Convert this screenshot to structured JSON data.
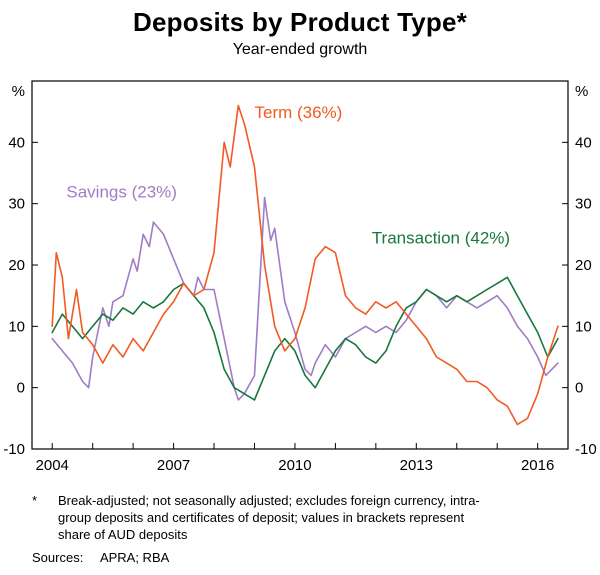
{
  "chart": {
    "title": "Deposits by Product Type*",
    "subtitle": "Year-ended growth"
  },
  "chart_data": {
    "type": "line",
    "title": "Deposits by Product Type*",
    "subtitle": "Year-ended growth",
    "y_unit": "%",
    "xlim": [
      2003.5,
      2016.75
    ],
    "ylim": [
      -10,
      50
    ],
    "yticks": [
      -10,
      0,
      10,
      20,
      30,
      40
    ],
    "xticks": [
      2004,
      2005,
      2006,
      2007,
      2008,
      2009,
      2010,
      2011,
      2012,
      2013,
      2014,
      2015,
      2016
    ],
    "xlabels": [
      "2004",
      "2007",
      "2010",
      "2013",
      "2016"
    ],
    "grid": false,
    "legend_position": "labels-on-chart",
    "series": [
      {
        "id": "savings",
        "name": "Savings (23%)",
        "color": "#a07cc5",
        "points": [
          [
            2004.0,
            8
          ],
          [
            2004.25,
            6
          ],
          [
            2004.5,
            4
          ],
          [
            2004.75,
            1
          ],
          [
            2004.9,
            0
          ],
          [
            2005.0,
            5
          ],
          [
            2005.25,
            13
          ],
          [
            2005.4,
            10
          ],
          [
            2005.5,
            14
          ],
          [
            2005.75,
            15
          ],
          [
            2006.0,
            21
          ],
          [
            2006.1,
            19
          ],
          [
            2006.25,
            25
          ],
          [
            2006.4,
            23
          ],
          [
            2006.5,
            27
          ],
          [
            2006.75,
            25
          ],
          [
            2007.0,
            21
          ],
          [
            2007.25,
            17
          ],
          [
            2007.5,
            15
          ],
          [
            2007.6,
            18
          ],
          [
            2007.75,
            16
          ],
          [
            2008.0,
            16
          ],
          [
            2008.25,
            8
          ],
          [
            2008.5,
            0
          ],
          [
            2008.6,
            -2
          ],
          [
            2008.75,
            -1
          ],
          [
            2009.0,
            2
          ],
          [
            2009.25,
            31
          ],
          [
            2009.4,
            24
          ],
          [
            2009.5,
            26
          ],
          [
            2009.75,
            14
          ],
          [
            2010.0,
            9
          ],
          [
            2010.25,
            3
          ],
          [
            2010.4,
            2
          ],
          [
            2010.5,
            4
          ],
          [
            2010.75,
            7
          ],
          [
            2011.0,
            5
          ],
          [
            2011.25,
            8
          ],
          [
            2011.5,
            9
          ],
          [
            2011.75,
            10
          ],
          [
            2012.0,
            9
          ],
          [
            2012.25,
            10
          ],
          [
            2012.5,
            9
          ],
          [
            2012.75,
            11
          ],
          [
            2013.0,
            14
          ],
          [
            2013.25,
            16
          ],
          [
            2013.5,
            15
          ],
          [
            2013.75,
            13
          ],
          [
            2014.0,
            15
          ],
          [
            2014.25,
            14
          ],
          [
            2014.5,
            13
          ],
          [
            2014.75,
            14
          ],
          [
            2015.0,
            15
          ],
          [
            2015.25,
            13
          ],
          [
            2015.5,
            10
          ],
          [
            2015.75,
            8
          ],
          [
            2016.0,
            5
          ],
          [
            2016.2,
            2
          ],
          [
            2016.35,
            3
          ],
          [
            2016.5,
            4
          ]
        ]
      },
      {
        "id": "transaction",
        "name": "Transaction (42%)",
        "color": "#17783b",
        "points": [
          [
            2004.0,
            9
          ],
          [
            2004.25,
            12
          ],
          [
            2004.5,
            10
          ],
          [
            2004.75,
            8
          ],
          [
            2005.0,
            10
          ],
          [
            2005.25,
            12
          ],
          [
            2005.5,
            11
          ],
          [
            2005.75,
            13
          ],
          [
            2006.0,
            12
          ],
          [
            2006.25,
            14
          ],
          [
            2006.5,
            13
          ],
          [
            2006.75,
            14
          ],
          [
            2007.0,
            16
          ],
          [
            2007.25,
            17
          ],
          [
            2007.5,
            15
          ],
          [
            2007.75,
            13
          ],
          [
            2008.0,
            9
          ],
          [
            2008.25,
            3
          ],
          [
            2008.5,
            0
          ],
          [
            2008.75,
            -1
          ],
          [
            2009.0,
            -2
          ],
          [
            2009.25,
            2
          ],
          [
            2009.5,
            6
          ],
          [
            2009.75,
            8
          ],
          [
            2010.0,
            6
          ],
          [
            2010.25,
            2
          ],
          [
            2010.5,
            0
          ],
          [
            2010.75,
            3
          ],
          [
            2011.0,
            6
          ],
          [
            2011.25,
            8
          ],
          [
            2011.5,
            7
          ],
          [
            2011.75,
            5
          ],
          [
            2012.0,
            4
          ],
          [
            2012.25,
            6
          ],
          [
            2012.5,
            10
          ],
          [
            2012.75,
            13
          ],
          [
            2013.0,
            14
          ],
          [
            2013.25,
            16
          ],
          [
            2013.5,
            15
          ],
          [
            2013.75,
            14
          ],
          [
            2014.0,
            15
          ],
          [
            2014.25,
            14
          ],
          [
            2014.5,
            15
          ],
          [
            2014.75,
            16
          ],
          [
            2015.0,
            17
          ],
          [
            2015.25,
            18
          ],
          [
            2015.5,
            15
          ],
          [
            2015.75,
            12
          ],
          [
            2016.0,
            9
          ],
          [
            2016.25,
            5
          ],
          [
            2016.5,
            8
          ]
        ]
      },
      {
        "id": "term",
        "name": "Term (36%)",
        "color": "#f15a22",
        "points": [
          [
            2004.0,
            10
          ],
          [
            2004.1,
            22
          ],
          [
            2004.25,
            18
          ],
          [
            2004.4,
            8
          ],
          [
            2004.6,
            16
          ],
          [
            2004.75,
            9
          ],
          [
            2005.0,
            7
          ],
          [
            2005.25,
            4
          ],
          [
            2005.5,
            7
          ],
          [
            2005.75,
            5
          ],
          [
            2006.0,
            8
          ],
          [
            2006.25,
            6
          ],
          [
            2006.5,
            9
          ],
          [
            2006.75,
            12
          ],
          [
            2007.0,
            14
          ],
          [
            2007.25,
            17
          ],
          [
            2007.5,
            15
          ],
          [
            2007.75,
            16
          ],
          [
            2008.0,
            22
          ],
          [
            2008.25,
            40
          ],
          [
            2008.4,
            36
          ],
          [
            2008.6,
            46
          ],
          [
            2008.75,
            43
          ],
          [
            2009.0,
            36
          ],
          [
            2009.25,
            20
          ],
          [
            2009.5,
            10
          ],
          [
            2009.75,
            6
          ],
          [
            2010.0,
            8
          ],
          [
            2010.25,
            13
          ],
          [
            2010.5,
            21
          ],
          [
            2010.75,
            23
          ],
          [
            2011.0,
            22
          ],
          [
            2011.25,
            15
          ],
          [
            2011.5,
            13
          ],
          [
            2011.75,
            12
          ],
          [
            2012.0,
            14
          ],
          [
            2012.25,
            13
          ],
          [
            2012.5,
            14
          ],
          [
            2012.75,
            12
          ],
          [
            2013.0,
            10
          ],
          [
            2013.25,
            8
          ],
          [
            2013.5,
            5
          ],
          [
            2013.75,
            4
          ],
          [
            2014.0,
            3
          ],
          [
            2014.25,
            1
          ],
          [
            2014.5,
            1
          ],
          [
            2014.75,
            0
          ],
          [
            2015.0,
            -2
          ],
          [
            2015.25,
            -3
          ],
          [
            2015.5,
            -6
          ],
          [
            2015.75,
            -5
          ],
          [
            2016.0,
            -1
          ],
          [
            2016.25,
            5
          ],
          [
            2016.5,
            10
          ]
        ]
      }
    ],
    "annotations": [
      {
        "id": "term",
        "text": "Term (36%)",
        "x": 2009.0,
        "y": 44,
        "anchor": "start",
        "color": "#f15a22"
      },
      {
        "id": "savings",
        "text": "Savings (23%)",
        "x": 2004.35,
        "y": 31,
        "anchor": "start",
        "color": "#a07cc5"
      },
      {
        "id": "transaction",
        "text": "Transaction (42%)",
        "x": 2011.9,
        "y": 23.5,
        "anchor": "start",
        "color": "#17783b"
      }
    ]
  },
  "footnote": {
    "marker": "*",
    "text": "Break-adjusted; not seasonally adjusted; excludes foreign currency, intra-group deposits and certificates of deposit; values in brackets represent share of AUD deposits"
  },
  "sources": {
    "label": "Sources:",
    "text": "APRA; RBA"
  }
}
